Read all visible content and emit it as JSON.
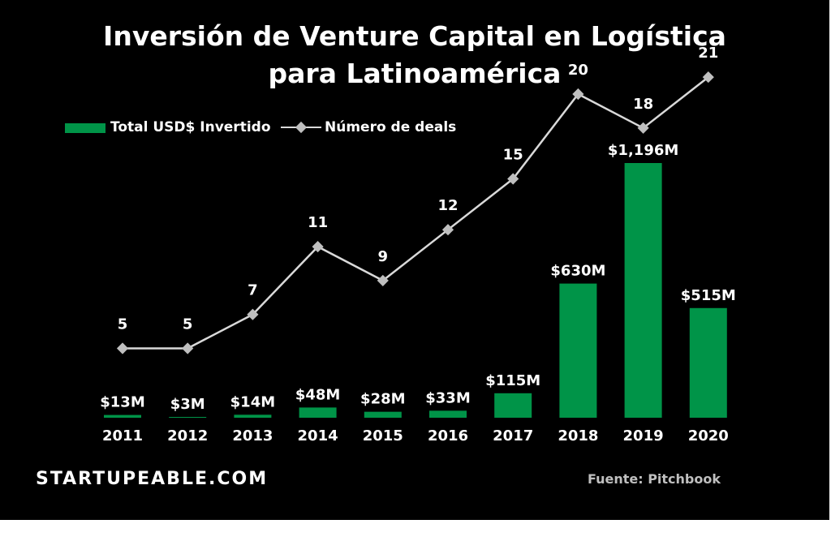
{
  "title": {
    "line1": "Inversión de Venture Capital en Logística",
    "line2": "para Latinoamérica"
  },
  "brand": "STARTUPEABLE.COM",
  "source": "Fuente: Pitchbook",
  "colors": {
    "background": "#000000",
    "bar": "#009448",
    "line": "#d9d9d9",
    "marker": "#bfbfbf",
    "text": "#ffffff",
    "source_text": "#bfbfbf"
  },
  "chart_data": {
    "type": "bar",
    "categories": [
      "2011",
      "2012",
      "2013",
      "2014",
      "2015",
      "2016",
      "2017",
      "2018",
      "2019",
      "2020"
    ],
    "series": [
      {
        "name": "Total USD$ Invertido",
        "kind": "bar",
        "values": [
          13,
          3,
          14,
          48,
          28,
          33,
          115,
          630,
          1196,
          515
        ],
        "labels": [
          "$13M",
          "$3M",
          "$14M",
          "$48M",
          "$28M",
          "$33M",
          "$115M",
          "$630M",
          "$1,196M",
          "$515M"
        ]
      },
      {
        "name": "Número de deals",
        "kind": "line",
        "values": [
          5,
          5,
          7,
          11,
          9,
          12,
          15,
          20,
          18,
          21
        ],
        "labels": [
          "5",
          "5",
          "7",
          "11",
          "9",
          "12",
          "15",
          "20",
          "18",
          "21"
        ]
      }
    ],
    "legend_position": "top-left",
    "grid": false
  }
}
